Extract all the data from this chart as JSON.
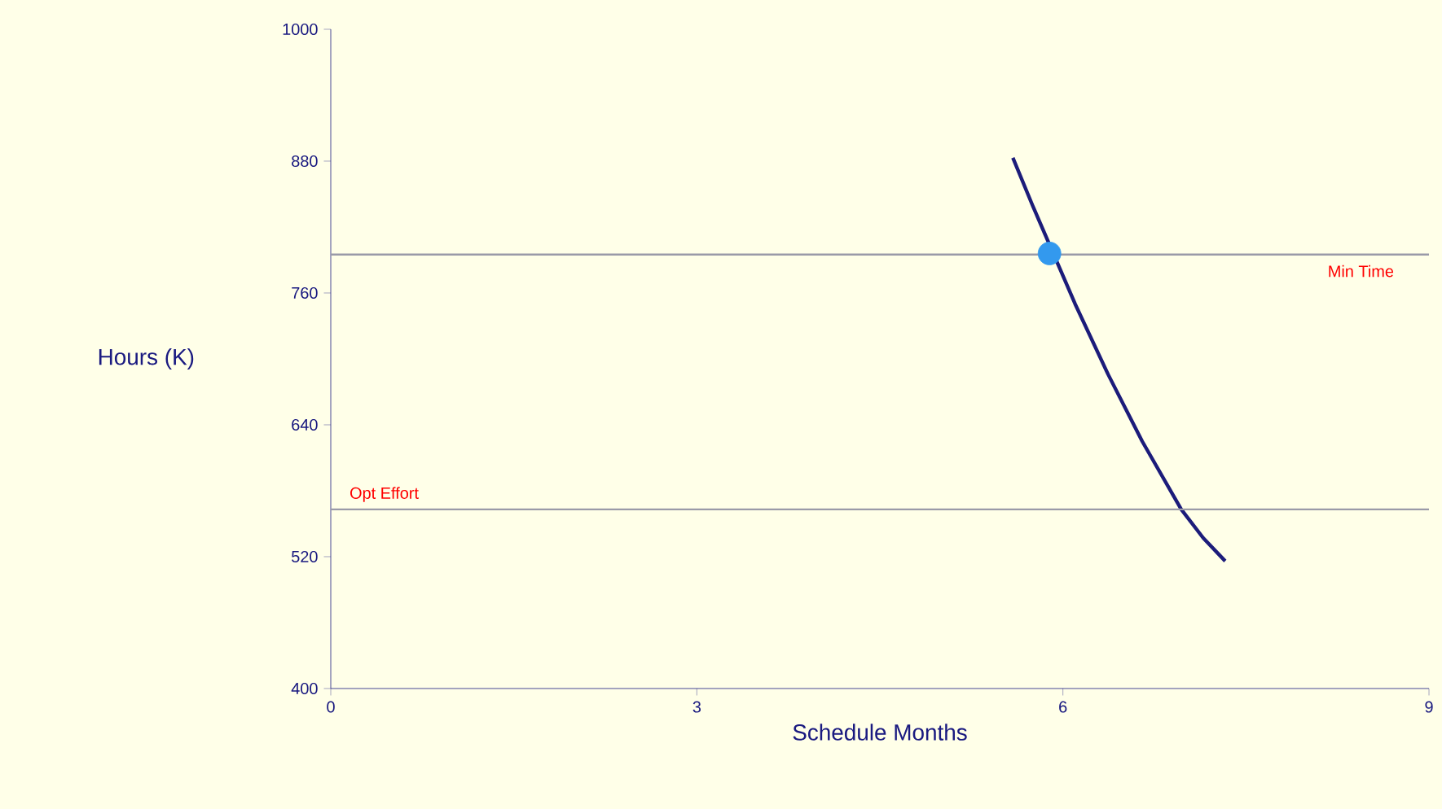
{
  "chart_data": {
    "type": "line",
    "xlabel": "Schedule Months",
    "ylabel": "Hours (K)",
    "xlim": [
      0,
      9
    ],
    "xticks": [
      0,
      3,
      6,
      9
    ],
    "ylim": [
      400,
      1000
    ],
    "yticks": [
      400,
      520,
      640,
      760,
      880,
      1000
    ],
    "grid": false,
    "series": [
      {
        "color": "#1c1c7a",
        "x": [
          5.59,
          5.75,
          5.9,
          6.1,
          6.37,
          6.65,
          6.97,
          7.15,
          7.33
        ],
        "values": [
          883,
          840,
          null,
          750,
          686,
          625,
          563,
          537,
          516
        ]
      },
      {
        "type": "scatter",
        "color": "#3399ee",
        "marker": "circle",
        "x": [
          5.89
        ],
        "values": [
          796
        ]
      }
    ],
    "ref_lines": [
      {
        "axis": "y",
        "value": 795,
        "label": "Min Time",
        "color": "#9a9aa8"
      },
      {
        "axis": "y",
        "value": 563,
        "label": "Opt Effort",
        "color": "#9a9aa8"
      }
    ]
  }
}
